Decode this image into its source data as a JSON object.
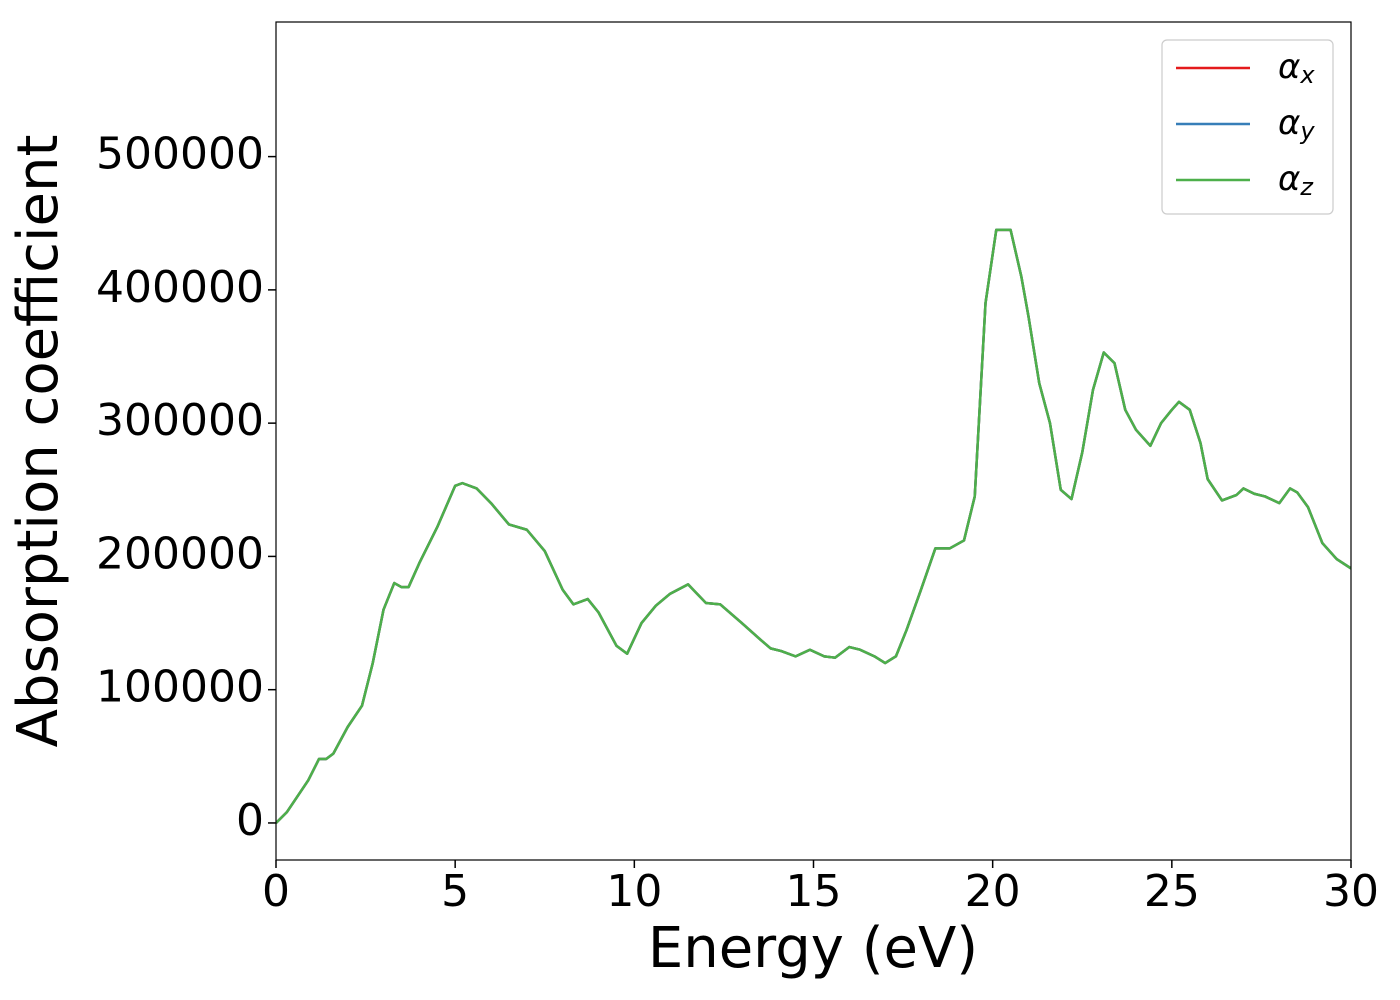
{
  "chart_data": {
    "type": "line",
    "xlabel": "Energy (eV)",
    "ylabel": "Absorption coefficient",
    "x": [
      0,
      0.3,
      0.6,
      0.9,
      1.2,
      1.4,
      1.6,
      2.0,
      2.4,
      2.7,
      3.0,
      3.3,
      3.5,
      3.7,
      4.0,
      4.5,
      5.0,
      5.2,
      5.6,
      6.0,
      6.5,
      7.0,
      7.5,
      8.0,
      8.3,
      8.7,
      9.0,
      9.5,
      9.8,
      10.2,
      10.6,
      11.0,
      11.5,
      12.0,
      12.4,
      13.0,
      13.5,
      13.8,
      14.1,
      14.5,
      14.9,
      15.3,
      15.6,
      16.0,
      16.3,
      16.7,
      17.0,
      17.3,
      17.6,
      18.0,
      18.4,
      18.8,
      19.2,
      19.5,
      19.8,
      20.1,
      20.5,
      20.8,
      21.0,
      21.3,
      21.6,
      21.9,
      22.2,
      22.5,
      22.8,
      23.1,
      23.4,
      23.7,
      24.0,
      24.4,
      24.7,
      25.0,
      25.2,
      25.5,
      25.8,
      26.0,
      26.4,
      26.8,
      27.0,
      27.3,
      27.6,
      28.0,
      28.3,
      28.5,
      28.8,
      29.2,
      29.6,
      30.0
    ],
    "series": [
      {
        "name": "αx",
        "color": "#e41a1c",
        "values": [
          0,
          8000,
          20000,
          32000,
          48000,
          48000,
          52000,
          72000,
          88000,
          120000,
          160000,
          180000,
          177000,
          177000,
          195000,
          222000,
          253000,
          255000,
          251000,
          240000,
          224000,
          220000,
          204000,
          175000,
          164000,
          168000,
          158000,
          133000,
          127000,
          150000,
          163000,
          172000,
          179000,
          165000,
          164000,
          150000,
          138000,
          131000,
          129000,
          125000,
          130000,
          125000,
          124000,
          132000,
          130000,
          125000,
          120000,
          125000,
          145000,
          175000,
          206000,
          206000,
          212000,
          245000,
          390000,
          445000,
          445000,
          410000,
          380000,
          330000,
          300000,
          250000,
          243000,
          278000,
          325000,
          353000,
          345000,
          310000,
          295000,
          283000,
          300000,
          310000,
          316000,
          310000,
          285000,
          258000,
          242000,
          246000,
          251000,
          247000,
          245000,
          240000,
          251000,
          248000,
          237000,
          210000,
          198000,
          191000
        ]
      },
      {
        "name": "αy",
        "color": "#377eb8",
        "values": [
          0,
          8000,
          20000,
          32000,
          48000,
          48000,
          52000,
          72000,
          88000,
          120000,
          160000,
          180000,
          177000,
          177000,
          195000,
          222000,
          253000,
          255000,
          251000,
          240000,
          224000,
          220000,
          204000,
          175000,
          164000,
          168000,
          158000,
          133000,
          127000,
          150000,
          163000,
          172000,
          179000,
          165000,
          164000,
          150000,
          138000,
          131000,
          129000,
          125000,
          130000,
          125000,
          124000,
          132000,
          130000,
          125000,
          120000,
          125000,
          145000,
          175000,
          206000,
          206000,
          212000,
          245000,
          390000,
          445000,
          445000,
          410000,
          380000,
          330000,
          300000,
          250000,
          243000,
          278000,
          325000,
          353000,
          345000,
          310000,
          295000,
          283000,
          300000,
          310000,
          316000,
          310000,
          285000,
          258000,
          242000,
          246000,
          251000,
          247000,
          245000,
          240000,
          251000,
          248000,
          237000,
          210000,
          198000,
          191000
        ]
      },
      {
        "name": "αz",
        "color": "#4daf4a",
        "values": [
          0,
          8000,
          20000,
          32000,
          48000,
          48000,
          52000,
          72000,
          88000,
          120000,
          160000,
          180000,
          177000,
          177000,
          195000,
          222000,
          253000,
          255000,
          251000,
          240000,
          224000,
          220000,
          204000,
          175000,
          164000,
          168000,
          158000,
          133000,
          127000,
          150000,
          163000,
          172000,
          179000,
          165000,
          164000,
          150000,
          138000,
          131000,
          129000,
          125000,
          130000,
          125000,
          124000,
          132000,
          130000,
          125000,
          120000,
          125000,
          145000,
          175000,
          206000,
          206000,
          212000,
          245000,
          390000,
          445000,
          445000,
          410000,
          380000,
          330000,
          300000,
          250000,
          243000,
          278000,
          325000,
          353000,
          345000,
          310000,
          295000,
          283000,
          300000,
          310000,
          316000,
          310000,
          285000,
          258000,
          242000,
          246000,
          251000,
          247000,
          245000,
          240000,
          251000,
          248000,
          237000,
          210000,
          198000,
          191000
        ]
      }
    ],
    "xlim": [
      0,
      30
    ],
    "xticks": [
      0,
      5,
      10,
      15,
      20,
      25,
      30
    ],
    "ylim": [
      -27800,
      601000
    ],
    "yticks": [
      0,
      100000,
      200000,
      300000,
      400000,
      500000
    ],
    "grid": false,
    "legend": "upper right"
  }
}
